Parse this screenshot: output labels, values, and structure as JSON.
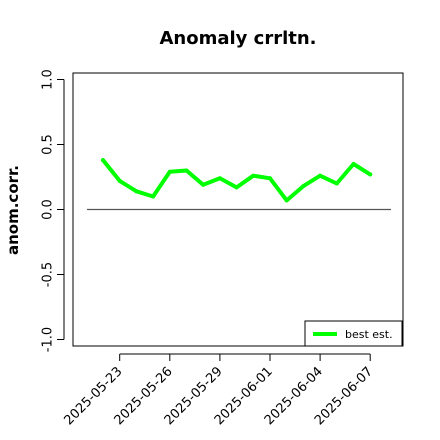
{
  "chart_data": {
    "type": "line",
    "title": "Anomaly crrltn.",
    "xlabel": "",
    "ylabel": "anom.corr.",
    "x": [
      "2025-05-22",
      "2025-05-23",
      "2025-05-24",
      "2025-05-25",
      "2025-05-26",
      "2025-05-27",
      "2025-05-28",
      "2025-05-29",
      "2025-05-30",
      "2025-05-31",
      "2025-06-01",
      "2025-06-02",
      "2025-06-03",
      "2025-06-04",
      "2025-06-05",
      "2025-06-06",
      "2025-06-07"
    ],
    "series": [
      {
        "name": "best est.",
        "color": "#00ff00",
        "values": [
          0.38,
          0.22,
          0.14,
          0.1,
          0.29,
          0.3,
          0.19,
          0.24,
          0.17,
          0.26,
          0.24,
          0.07,
          0.18,
          0.26,
          0.2,
          0.35,
          0.27
        ]
      }
    ],
    "xticks": [
      "2025-05-23",
      "2025-05-26",
      "2025-05-29",
      "2025-06-01",
      "2025-06-04",
      "2025-06-07"
    ],
    "highlight_tick": "2025-05-29",
    "highlight_color": "#228b22",
    "yticks": [
      "-1.0",
      "-0.5",
      "0.0",
      "0.5",
      "1.0"
    ],
    "ytick_values": [
      -1.0,
      -0.5,
      0.0,
      0.5,
      1.0
    ],
    "ylim": [
      -1.05,
      1.05
    ],
    "reference_line": 0,
    "reference_color": "#555555",
    "legend_position": "bottom-right",
    "grid": false
  }
}
